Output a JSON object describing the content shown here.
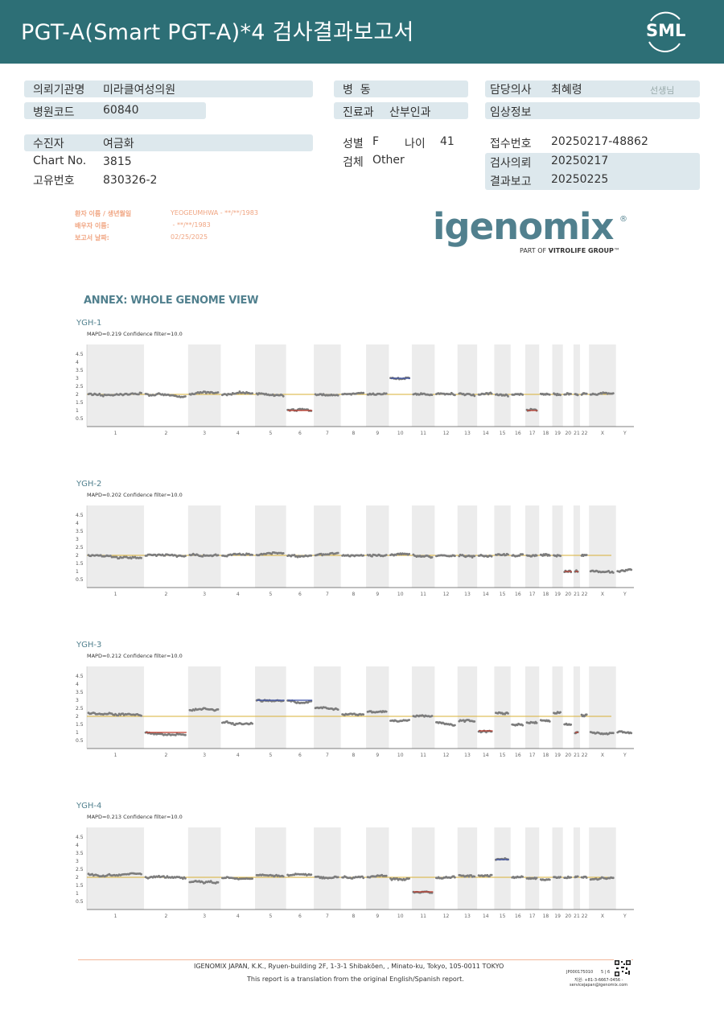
{
  "header": {
    "title": "PGT-A(Smart  PGT-A)*4 검사결과보고서",
    "logo_text": "SML",
    "accent_color": "#2d6f76"
  },
  "info": {
    "institution_label": "의뢰기관명",
    "institution": "미라클여성의원",
    "hospital_code_label": "병원코드",
    "hospital_code": "60840",
    "ward_label": "병  동",
    "ward": "",
    "department_label": "진료과",
    "department": "산부인과",
    "doctor_label": "담당의사",
    "doctor": "최혜령",
    "doctor_suffix": "선생님",
    "clinical_label": "임상정보",
    "clinical": "",
    "patient_label": "수진자",
    "patient": "여금화",
    "chart_label": "Chart No.",
    "chart": "3815",
    "id_label": "고유번호",
    "id": "830326-2",
    "sex_label": "성별",
    "sex": "F",
    "age_label": "나이",
    "age": "41",
    "specimen_label": "검체",
    "specimen": "Other",
    "receipt_label": "접수번호",
    "receipt": "20250217-48862",
    "request_label": "검사의뢰",
    "request": "20250217",
    "report_label": "결과보고",
    "report": "20250225"
  },
  "report_meta": {
    "patient_name_label": "환자 이름 / 생년월일",
    "patient_name": "YEOGEUMHWA - **/**/1983",
    "partner_label": "배우자 이름:",
    "partner": " - **/**/1983",
    "date_label": "보고서 날짜:",
    "date": "02/25/2025"
  },
  "brand": {
    "name": "igenomix",
    "registered": "®",
    "tagline_prefix": "PART OF ",
    "tagline_bold": "VITROLIFE GROUP",
    "tagline_suffix": "™",
    "color": "#51808e"
  },
  "annex_title": "ANNEX: WHOLE GENOME VIEW",
  "plot_axis": {
    "y_ticks": [
      "4.5",
      "4",
      "3.5",
      "3",
      "2.5",
      "2",
      "1.5",
      "1",
      "0.5"
    ],
    "chromosomes": [
      "1",
      "2",
      "3",
      "4",
      "5",
      "6",
      "7",
      "8",
      "9",
      "10",
      "11",
      "12",
      "13",
      "14",
      "15",
      "16",
      "17",
      "18",
      "19",
      "20",
      "21",
      "22",
      "X",
      "Y"
    ]
  },
  "chart_data": [
    {
      "type": "scatter",
      "title": "YGH-1",
      "subtitle": "MAPD=0.219 Confidence filter=10.0",
      "ylim": [
        0,
        5
      ],
      "reference_line": 2,
      "copy_number": [
        2,
        2,
        2,
        2,
        2,
        1,
        2,
        2,
        2,
        3,
        2,
        2,
        2,
        2,
        2,
        2,
        1,
        2,
        2,
        2,
        2,
        2,
        2,
        0
      ],
      "gains": [
        "10"
      ],
      "losses": [
        "6",
        "17"
      ]
    },
    {
      "type": "scatter",
      "title": "YGH-2",
      "subtitle": "MAPD=0.202 Confidence filter=10.0",
      "ylim": [
        0,
        5
      ],
      "reference_line": 2,
      "copy_number": [
        2,
        2,
        2,
        2,
        2,
        2,
        2,
        2,
        2,
        2,
        2,
        2,
        2,
        2,
        2,
        2,
        2,
        2,
        2,
        1,
        1,
        2,
        1,
        1
      ],
      "gains": [],
      "losses": [
        "20",
        "21"
      ]
    },
    {
      "type": "scatter",
      "title": "YGH-3",
      "subtitle": "MAPD=0.212 Confidence filter=10.0",
      "ylim": [
        0,
        5
      ],
      "reference_line": 2,
      "copy_number": [
        2.2,
        1,
        2.4,
        1.6,
        3,
        3,
        2.5,
        2.1,
        2.3,
        1.7,
        2,
        1.6,
        1.7,
        1.1,
        2.2,
        1.5,
        1.6,
        1.8,
        2.2,
        1.5,
        1,
        2.1,
        1,
        1
      ],
      "gains": [
        "5",
        "6"
      ],
      "losses": [
        "2",
        "14",
        "21"
      ]
    },
    {
      "type": "scatter",
      "title": "YGH-4",
      "subtitle": "MAPD=0.213 Confidence filter=10.0",
      "ylim": [
        0,
        5
      ],
      "reference_line": 2,
      "copy_number": [
        2.2,
        2,
        1.7,
        2,
        2.1,
        2.1,
        2,
        2,
        2,
        1.9,
        1.1,
        2,
        2.1,
        2.1,
        3.1,
        2,
        1.9,
        1.9,
        2,
        2,
        2,
        2,
        1.9,
        0
      ],
      "gains": [
        "15"
      ],
      "losses": [
        "11"
      ]
    }
  ],
  "footer": {
    "company": "IGENOMIX JAPAN, K.K., Ryuen-building 2F, 1-3-1 Shibakōen, , Minato-ku, Tokyo, 105-0011 TOKYO",
    "note": "This report is a translation from the original English/Spanish report.",
    "doc_code": "JP000175010",
    "page": "5 | 6",
    "phone": "지원: +81-3-6667-0456 -",
    "email": "servicejapan@igenomix.com"
  }
}
